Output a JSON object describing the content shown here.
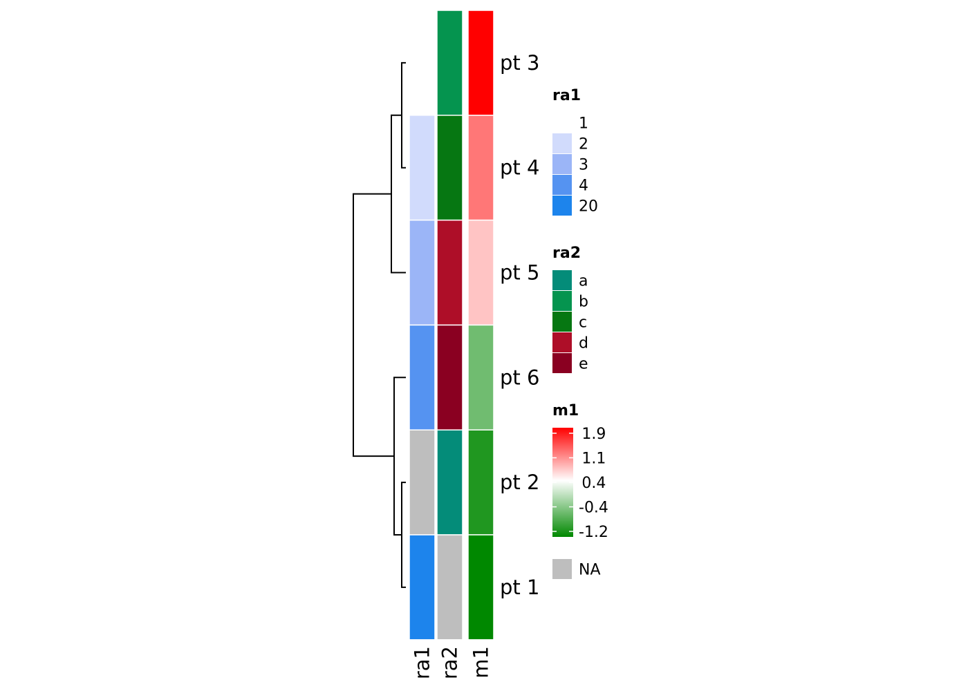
{
  "chart_data": {
    "type": "heatmap",
    "rows": [
      "pt 3",
      "pt 4",
      "pt 5",
      "pt 6",
      "pt 2",
      "pt 1"
    ],
    "columns": [
      "ra1",
      "ra2",
      "m1"
    ],
    "values": {
      "ra1": [
        1,
        2,
        3,
        4,
        null,
        20
      ],
      "ra2": [
        "b",
        "c",
        "d",
        "e",
        "a",
        null
      ],
      "m1": [
        1.9,
        1.2,
        0.75,
        -0.5,
        -1.0,
        -1.2
      ]
    },
    "dendrogram": {
      "side": "left",
      "merges": [
        {
          "left": "pt 3",
          "right": "pt 4"
        },
        {
          "left": "merge0",
          "right": "pt 5"
        },
        {
          "left": "pt 2",
          "right": "pt 1"
        },
        {
          "left": "pt 6",
          "right": "merge2"
        },
        {
          "left": "merge1",
          "right": "merge3"
        }
      ]
    },
    "legends": [
      {
        "title": "ra1",
        "kind": "discrete",
        "items": [
          {
            "label": "1",
            "color": "#ffffff"
          },
          {
            "label": "2",
            "color": "#d1dbfc"
          },
          {
            "label": "3",
            "color": "#9bb5f7"
          },
          {
            "label": "4",
            "color": "#5593f1"
          },
          {
            "label": "20",
            "color": "#1d84ec"
          }
        ]
      },
      {
        "title": "ra2",
        "kind": "discrete",
        "items": [
          {
            "label": "a",
            "color": "#048c79"
          },
          {
            "label": "b",
            "color": "#05944f"
          },
          {
            "label": "c",
            "color": "#067712"
          },
          {
            "label": "d",
            "color": "#ae0e28"
          },
          {
            "label": "e",
            "color": "#8a0021"
          }
        ]
      },
      {
        "title": "m1",
        "kind": "continuous",
        "ticks": [
          "1.9",
          "1.1",
          "0.4",
          "-0.4",
          "-1.2"
        ],
        "range": [
          -1.2,
          1.9
        ],
        "mid": 0.4,
        "low_color": "#008800",
        "mid_color": "#ffffff",
        "high_color": "#ff0000"
      }
    ],
    "na": {
      "label": "NA",
      "color": "#bebebe"
    }
  }
}
